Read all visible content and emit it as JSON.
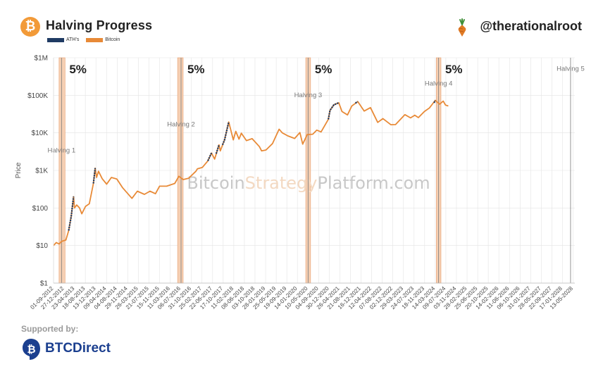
{
  "header": {
    "title": "Halving Progress",
    "handle": "@therationalroot",
    "logo_glyph": "₿",
    "logo_icon": "bitcoin-icon",
    "handle_icon": "carrot-icon"
  },
  "footer": {
    "supported_label": "Supported by:",
    "brand": "BTCDirect",
    "brand_icon": "btcdirect-bitcoin-icon"
  },
  "colors": {
    "ath": "#1f3b63",
    "bitcoin": "#e88a37",
    "halving_band": "#f5cfb3",
    "halving_band_edge": "#e9a070",
    "grid": "#e4e4e4",
    "logo": "#f29a38",
    "brand": "#1b3f8f"
  },
  "chart_data": {
    "type": "line",
    "y_scale": "log",
    "ylabel": "Price",
    "ylim": [
      1,
      1000000
    ],
    "yticks": [
      {
        "value": 1,
        "label": "$1"
      },
      {
        "value": 10,
        "label": "$10"
      },
      {
        "value": 100,
        "label": "$100"
      },
      {
        "value": 1000,
        "label": "$1K"
      },
      {
        "value": 10000,
        "label": "$10K"
      },
      {
        "value": 100000,
        "label": "$100K"
      },
      {
        "value": 1000000,
        "label": "$1M"
      }
    ],
    "xlim": [
      "2012-09-01",
      "2028-06-01"
    ],
    "xtick_labels": [
      "01-09-2012",
      "27-12-2012",
      "23-04-2013",
      "18-08-2013",
      "13-12-2013",
      "09-04-2014",
      "04-08-2014",
      "29-11-2014",
      "26-03-2015",
      "21-07-2015",
      "15-11-2015",
      "11-03-2016",
      "06-07-2016",
      "31-10-2016",
      "25-02-2017",
      "22-06-2017",
      "17-10-2017",
      "11-02-2018",
      "08-06-2018",
      "03-10-2018",
      "28-01-2019",
      "25-05-2019",
      "19-09-2019",
      "14-01-2020",
      "10-05-2020",
      "04-09-2020",
      "30-12-2020",
      "26-04-2021",
      "21-08-2021",
      "16-12-2021",
      "12-04-2022",
      "07-08-2022",
      "02-12-2022",
      "29-03-2023",
      "24-07-2023",
      "18-11-2023",
      "14-03-2024",
      "09-07-2024",
      "03-11-2024",
      "28-02-2025",
      "25-06-2025",
      "20-10-2025",
      "14-02-2026",
      "11-06-2026",
      "06-10-2026",
      "31-01-2027",
      "28-05-2027",
      "22-09-2027",
      "17-01-2028",
      "13-05-2028"
    ],
    "legend": [
      {
        "name": "ATH's",
        "color": "#1f3b63"
      },
      {
        "name": "Bitcoin",
        "color": "#e88a37"
      }
    ],
    "halvings": [
      {
        "label": "Halving 1",
        "date": "2012-11-28",
        "label_value": 3000,
        "band_start": "2012-11-01",
        "band_end": "2013-01-06",
        "pct_label": "5%"
      },
      {
        "label": "Halving 2",
        "date": "2016-07-09",
        "label_value": 15000,
        "band_start": "2016-06-01",
        "band_end": "2016-08-01",
        "pct_label": "5%"
      },
      {
        "label": "Halving 3",
        "date": "2020-05-11",
        "label_value": 90000,
        "band_start": "2020-04-15",
        "band_end": "2020-06-07",
        "pct_label": "5%"
      },
      {
        "label": "Halving 4",
        "date": "2024-04-20",
        "label_value": 180000,
        "band_start": "2024-03-25",
        "band_end": "2024-05-16",
        "pct_label": "5%"
      },
      {
        "label": "Halving 5",
        "date": "2028-04-15",
        "label_value": 450000
      }
    ],
    "series": [
      {
        "name": "Bitcoin",
        "color": "#e88a37",
        "points": [
          [
            "2012-09-01",
            10
          ],
          [
            "2012-10-01",
            12
          ],
          [
            "2012-11-01",
            11
          ],
          [
            "2012-12-01",
            13
          ],
          [
            "2013-01-15",
            14
          ],
          [
            "2013-02-15",
            25
          ],
          [
            "2013-03-15",
            60
          ],
          [
            "2013-04-10",
            200
          ],
          [
            "2013-04-20",
            100
          ],
          [
            "2013-05-15",
            120
          ],
          [
            "2013-06-15",
            100
          ],
          [
            "2013-07-10",
            70
          ],
          [
            "2013-08-20",
            110
          ],
          [
            "2013-10-01",
            130
          ],
          [
            "2013-11-15",
            450
          ],
          [
            "2013-12-04",
            1150
          ],
          [
            "2013-12-20",
            650
          ],
          [
            "2014-01-10",
            950
          ],
          [
            "2014-02-20",
            600
          ],
          [
            "2014-04-10",
            430
          ],
          [
            "2014-06-01",
            650
          ],
          [
            "2014-08-01",
            590
          ],
          [
            "2014-10-01",
            350
          ],
          [
            "2015-01-14",
            180
          ],
          [
            "2015-03-15",
            280
          ],
          [
            "2015-06-01",
            230
          ],
          [
            "2015-08-01",
            280
          ],
          [
            "2015-10-01",
            240
          ],
          [
            "2015-11-15",
            380
          ],
          [
            "2016-02-01",
            380
          ],
          [
            "2016-05-01",
            450
          ],
          [
            "2016-06-15",
            700
          ],
          [
            "2016-08-01",
            570
          ],
          [
            "2016-10-01",
            620
          ],
          [
            "2016-12-20",
            950
          ],
          [
            "2017-01-05",
            1100
          ],
          [
            "2017-03-01",
            1200
          ],
          [
            "2017-05-01",
            1800
          ],
          [
            "2017-06-10",
            2900
          ],
          [
            "2017-07-15",
            2000
          ],
          [
            "2017-09-01",
            4800
          ],
          [
            "2017-09-15",
            3300
          ],
          [
            "2017-11-01",
            6500
          ],
          [
            "2017-12-17",
            19500
          ],
          [
            "2018-02-06",
            6500
          ],
          [
            "2018-03-05",
            11000
          ],
          [
            "2018-04-10",
            6800
          ],
          [
            "2018-05-05",
            9800
          ],
          [
            "2018-07-01",
            6200
          ],
          [
            "2018-09-01",
            7000
          ],
          [
            "2018-11-20",
            4300
          ],
          [
            "2018-12-15",
            3300
          ],
          [
            "2019-02-01",
            3500
          ],
          [
            "2019-04-15",
            5200
          ],
          [
            "2019-06-26",
            12500
          ],
          [
            "2019-08-01",
            10000
          ],
          [
            "2019-10-01",
            8300
          ],
          [
            "2019-12-15",
            7100
          ],
          [
            "2020-02-10",
            10200
          ],
          [
            "2020-03-12",
            5000
          ],
          [
            "2020-05-01",
            9000
          ],
          [
            "2020-07-01",
            9200
          ],
          [
            "2020-08-15",
            11800
          ],
          [
            "2020-10-01",
            10600
          ],
          [
            "2020-12-20",
            23000
          ],
          [
            "2021-01-08",
            40000
          ],
          [
            "2021-02-20",
            56000
          ],
          [
            "2021-04-14",
            63500
          ],
          [
            "2021-05-20",
            37000
          ],
          [
            "2021-07-20",
            30000
          ],
          [
            "2021-09-05",
            52000
          ],
          [
            "2021-11-10",
            68000
          ],
          [
            "2022-01-20",
            38000
          ],
          [
            "2022-03-30",
            47000
          ],
          [
            "2022-06-18",
            19000
          ],
          [
            "2022-08-15",
            24000
          ],
          [
            "2022-11-10",
            16500
          ],
          [
            "2023-01-01",
            16600
          ],
          [
            "2023-04-14",
            30500
          ],
          [
            "2023-06-15",
            25000
          ],
          [
            "2023-08-01",
            29500
          ],
          [
            "2023-09-10",
            25500
          ],
          [
            "2023-11-15",
            37000
          ],
          [
            "2024-01-10",
            46000
          ],
          [
            "2024-03-14",
            73500
          ],
          [
            "2024-05-01",
            58000
          ],
          [
            "2024-06-10",
            70000
          ],
          [
            "2024-07-05",
            55000
          ],
          [
            "2024-08-05",
            52000
          ]
        ]
      },
      {
        "name": "ATH's",
        "color": "#1f3b63",
        "segments": [
          [
            [
              "2013-02-15",
              25
            ],
            [
              "2013-03-15",
              60
            ],
            [
              "2013-04-10",
              200
            ]
          ],
          [
            [
              "2013-11-15",
              450
            ],
            [
              "2013-12-04",
              1150
            ]
          ],
          [
            [
              "2017-05-01",
              1800
            ],
            [
              "2017-06-10",
              2900
            ]
          ],
          [
            [
              "2017-08-01",
              2800
            ],
            [
              "2017-09-01",
              4800
            ]
          ],
          [
            [
              "2017-10-10",
              4800
            ],
            [
              "2017-11-01",
              6500
            ],
            [
              "2017-12-17",
              19500
            ]
          ],
          [
            [
              "2020-12-20",
              23000
            ],
            [
              "2021-01-08",
              40000
            ],
            [
              "2021-02-20",
              56000
            ],
            [
              "2021-04-14",
              63500
            ]
          ],
          [
            [
              "2021-10-15",
              62000
            ],
            [
              "2021-11-10",
              68000
            ]
          ],
          [
            [
              "2024-03-01",
              63000
            ],
            [
              "2024-03-14",
              73500
            ]
          ]
        ]
      }
    ],
    "watermark": [
      {
        "text": "Bitcoin",
        "color": "#c8c8c8"
      },
      {
        "text": "Strategy",
        "color": "#f3d9c2"
      },
      {
        "text": "Platform.com",
        "color": "#c8c8c8"
      }
    ]
  }
}
